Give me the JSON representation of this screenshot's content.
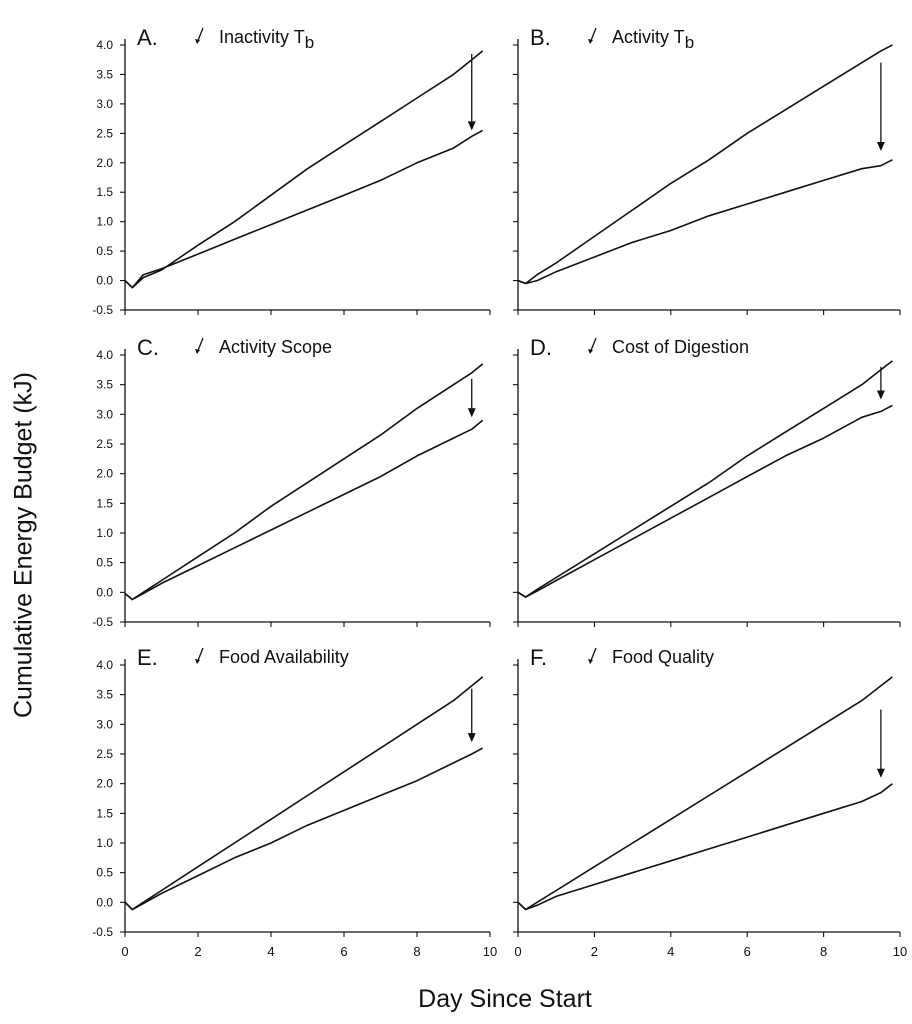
{
  "figure": {
    "xlabel": "Day Since Start",
    "ylabel": "Cumulative Energy Budget  (kJ)"
  },
  "chart_data": [
    {
      "panel": "A.",
      "title": "Inactivity T",
      "title_sub": "b",
      "type": "line",
      "xlim": [
        0,
        10
      ],
      "ylim": [
        -0.5,
        4.0
      ],
      "xticks": [
        0,
        2,
        4,
        6,
        8,
        10
      ],
      "yticks": [
        -0.5,
        0.0,
        0.5,
        1.0,
        1.5,
        2.0,
        2.5,
        3.0,
        3.5,
        4.0
      ],
      "y_tick_labels_shown": true,
      "x_tick_labels_shown": false,
      "arrow": {
        "x": 9.5,
        "y_from": 3.85,
        "y_to": 2.55
      },
      "series": [
        {
          "x": [
            0,
            0.2,
            0.5,
            1,
            2,
            3,
            4,
            5,
            6,
            7,
            8,
            9,
            9.5,
            9.8
          ],
          "y": [
            0.0,
            -0.12,
            0.05,
            0.18,
            0.6,
            1.0,
            1.45,
            1.9,
            2.3,
            2.7,
            3.1,
            3.5,
            3.75,
            3.9
          ]
        },
        {
          "x": [
            0,
            0.2,
            0.5,
            1,
            2,
            3,
            4,
            5,
            6,
            7,
            8,
            9,
            9.5,
            9.8
          ],
          "y": [
            0.0,
            -0.12,
            0.1,
            0.2,
            0.45,
            0.7,
            0.95,
            1.2,
            1.45,
            1.7,
            2.0,
            2.25,
            2.45,
            2.55
          ]
        }
      ]
    },
    {
      "panel": "B.",
      "title": "Activity T",
      "title_sub": "b",
      "type": "line",
      "xlim": [
        0,
        10
      ],
      "ylim": [
        -0.5,
        4.0
      ],
      "xticks": [
        0,
        2,
        4,
        6,
        8,
        10
      ],
      "yticks": [
        -0.5,
        0.0,
        0.5,
        1.0,
        1.5,
        2.0,
        2.5,
        3.0,
        3.5,
        4.0
      ],
      "y_tick_labels_shown": false,
      "x_tick_labels_shown": false,
      "arrow": {
        "x": 9.5,
        "y_from": 3.7,
        "y_to": 2.2
      },
      "series": [
        {
          "x": [
            0,
            0.2,
            0.5,
            1,
            2,
            3,
            4,
            5,
            6,
            7,
            8,
            9,
            9.5,
            9.8
          ],
          "y": [
            0.0,
            -0.05,
            0.1,
            0.3,
            0.75,
            1.2,
            1.65,
            2.05,
            2.5,
            2.9,
            3.3,
            3.7,
            3.9,
            4.0
          ]
        },
        {
          "x": [
            0,
            0.2,
            0.5,
            1,
            2,
            3,
            4,
            5,
            6,
            7,
            8,
            9,
            9.5,
            9.8
          ],
          "y": [
            0.0,
            -0.05,
            0.0,
            0.15,
            0.4,
            0.65,
            0.85,
            1.1,
            1.3,
            1.5,
            1.7,
            1.9,
            1.95,
            2.05
          ]
        }
      ]
    },
    {
      "panel": "C.",
      "title": "Activity Scope",
      "title_sub": "",
      "type": "line",
      "xlim": [
        0,
        10
      ],
      "ylim": [
        -0.5,
        4.0
      ],
      "xticks": [
        0,
        2,
        4,
        6,
        8,
        10
      ],
      "yticks": [
        -0.5,
        0.0,
        0.5,
        1.0,
        1.5,
        2.0,
        2.5,
        3.0,
        3.5,
        4.0
      ],
      "y_tick_labels_shown": true,
      "x_tick_labels_shown": false,
      "arrow": {
        "x": 9.5,
        "y_from": 3.6,
        "y_to": 2.95
      },
      "series": [
        {
          "x": [
            0,
            0.2,
            0.5,
            1,
            2,
            3,
            4,
            5,
            6,
            7,
            8,
            9,
            9.5,
            9.8
          ],
          "y": [
            -0.02,
            -0.12,
            0.0,
            0.2,
            0.6,
            1.0,
            1.45,
            1.85,
            2.25,
            2.65,
            3.1,
            3.5,
            3.7,
            3.85
          ]
        },
        {
          "x": [
            0,
            0.2,
            0.5,
            1,
            2,
            3,
            4,
            5,
            6,
            7,
            8,
            9,
            9.5,
            9.8
          ],
          "y": [
            -0.02,
            -0.12,
            -0.02,
            0.15,
            0.45,
            0.75,
            1.05,
            1.35,
            1.65,
            1.95,
            2.3,
            2.6,
            2.75,
            2.9
          ]
        }
      ]
    },
    {
      "panel": "D.",
      "title": "Cost of Digestion",
      "title_sub": "",
      "type": "line",
      "xlim": [
        0,
        10
      ],
      "ylim": [
        -0.5,
        4.0
      ],
      "xticks": [
        0,
        2,
        4,
        6,
        8,
        10
      ],
      "yticks": [
        -0.5,
        0.0,
        0.5,
        1.0,
        1.5,
        2.0,
        2.5,
        3.0,
        3.5,
        4.0
      ],
      "y_tick_labels_shown": false,
      "x_tick_labels_shown": false,
      "arrow": {
        "x": 9.5,
        "y_from": 3.8,
        "y_to": 3.25
      },
      "series": [
        {
          "x": [
            0,
            0.2,
            0.5,
            1,
            2,
            3,
            4,
            5,
            6,
            7,
            8,
            9,
            9.5,
            9.8
          ],
          "y": [
            0.0,
            -0.08,
            0.05,
            0.25,
            0.65,
            1.05,
            1.45,
            1.85,
            2.3,
            2.7,
            3.1,
            3.5,
            3.75,
            3.9
          ]
        },
        {
          "x": [
            0,
            0.2,
            0.5,
            1,
            2,
            3,
            4,
            5,
            6,
            7,
            8,
            9,
            9.5,
            9.8
          ],
          "y": [
            0.0,
            -0.08,
            0.02,
            0.2,
            0.55,
            0.9,
            1.25,
            1.6,
            1.95,
            2.3,
            2.6,
            2.95,
            3.05,
            3.15
          ]
        }
      ]
    },
    {
      "panel": "E.",
      "title": "Food Availability",
      "title_sub": "",
      "type": "line",
      "xlim": [
        0,
        10
      ],
      "ylim": [
        -0.5,
        4.0
      ],
      "xticks": [
        0,
        2,
        4,
        6,
        8,
        10
      ],
      "yticks": [
        -0.5,
        0.0,
        0.5,
        1.0,
        1.5,
        2.0,
        2.5,
        3.0,
        3.5,
        4.0
      ],
      "y_tick_labels_shown": true,
      "x_tick_labels_shown": true,
      "arrow": {
        "x": 9.5,
        "y_from": 3.6,
        "y_to": 2.7
      },
      "series": [
        {
          "x": [
            0,
            0.2,
            0.5,
            1,
            2,
            3,
            4,
            5,
            6,
            7,
            8,
            9,
            9.5,
            9.8
          ],
          "y": [
            0.0,
            -0.12,
            0.0,
            0.2,
            0.6,
            1.0,
            1.4,
            1.8,
            2.2,
            2.6,
            3.0,
            3.4,
            3.65,
            3.8
          ]
        },
        {
          "x": [
            0,
            0.2,
            0.5,
            1,
            2,
            3,
            4,
            5,
            6,
            7,
            8,
            9,
            9.5,
            9.8
          ],
          "y": [
            0.0,
            -0.12,
            -0.02,
            0.15,
            0.45,
            0.75,
            1.0,
            1.3,
            1.55,
            1.8,
            2.05,
            2.35,
            2.5,
            2.6
          ]
        }
      ]
    },
    {
      "panel": "F.",
      "title": "Food Quality",
      "title_sub": "",
      "type": "line",
      "xlim": [
        0,
        10
      ],
      "ylim": [
        -0.5,
        4.0
      ],
      "xticks": [
        0,
        2,
        4,
        6,
        8,
        10
      ],
      "yticks": [
        -0.5,
        0.0,
        0.5,
        1.0,
        1.5,
        2.0,
        2.5,
        3.0,
        3.5,
        4.0
      ],
      "y_tick_labels_shown": false,
      "x_tick_labels_shown": true,
      "arrow": {
        "x": 9.5,
        "y_from": 3.25,
        "y_to": 2.1
      },
      "series": [
        {
          "x": [
            0,
            0.2,
            0.5,
            1,
            2,
            3,
            4,
            5,
            6,
            7,
            8,
            9,
            9.5,
            9.8
          ],
          "y": [
            0.0,
            -0.12,
            0.0,
            0.2,
            0.6,
            1.0,
            1.4,
            1.8,
            2.2,
            2.6,
            3.0,
            3.4,
            3.65,
            3.8
          ]
        },
        {
          "x": [
            0,
            0.2,
            0.5,
            1,
            2,
            3,
            4,
            5,
            6,
            7,
            8,
            9,
            9.5,
            9.8
          ],
          "y": [
            0.0,
            -0.12,
            -0.05,
            0.1,
            0.3,
            0.5,
            0.7,
            0.9,
            1.1,
            1.3,
            1.5,
            1.7,
            1.85,
            2.0
          ]
        }
      ]
    }
  ]
}
